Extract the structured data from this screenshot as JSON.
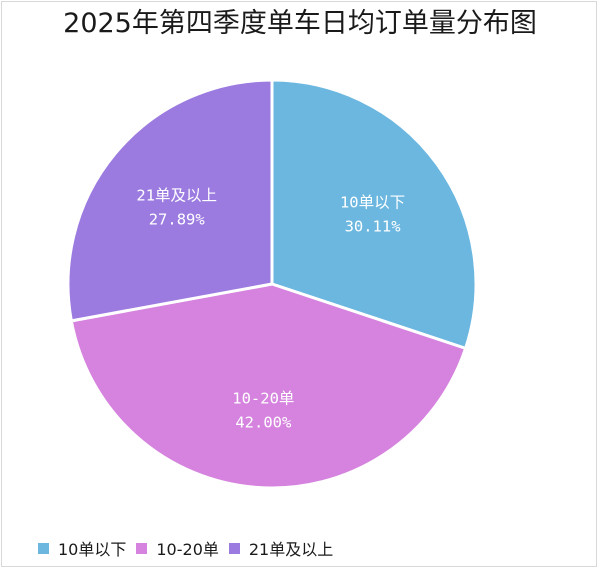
{
  "chart_data": {
    "type": "pie",
    "title": "2025年第四季度单车日均订单量分布图",
    "slices": [
      {
        "label": "10单以下",
        "value": 30.11,
        "value_label": "30.11%",
        "color": "#6BB7E0"
      },
      {
        "label": "10-20单",
        "value": 42.0,
        "value_label": "42.00%",
        "color": "#D583DE"
      },
      {
        "label": "21单及以上",
        "value": 27.89,
        "value_label": "27.89%",
        "color": "#9C7BE0"
      }
    ],
    "start_angle_deg": 0,
    "direction": "clockwise",
    "legend_position": "bottom-left"
  }
}
